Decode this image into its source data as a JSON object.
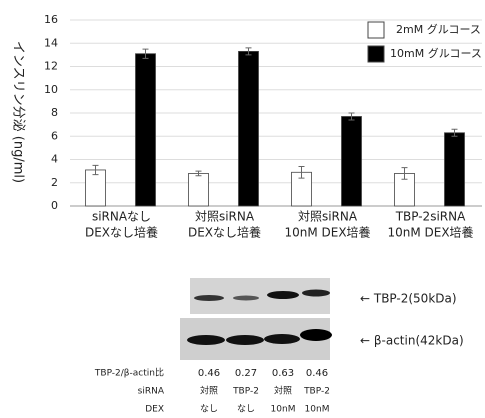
{
  "chart_data": {
    "type": "bar",
    "y_label": "インスリン分泌 (ng/ml)",
    "categories": [
      [
        "siRNAなし",
        "DEXなし培養"
      ],
      [
        "対照siRNA",
        "DEXなし培養"
      ],
      [
        "対照siRNA",
        "10nM DEX培養"
      ],
      [
        "TBP-2siRNA",
        "10nM DEX培養"
      ]
    ],
    "series": [
      {
        "name": "2mM グルコース",
        "color": "#ffffff",
        "values": [
          3.1,
          2.8,
          2.9,
          2.8
        ],
        "errors": [
          0.4,
          0.2,
          0.5,
          0.5
        ]
      },
      {
        "name": "10mM グルコース",
        "color": "#000000",
        "values": [
          13.1,
          13.3,
          7.7,
          6.3
        ],
        "errors": [
          0.4,
          0.3,
          0.3,
          0.3
        ]
      }
    ],
    "ylim": [
      0,
      16
    ],
    "yticks": [
      0,
      2,
      4,
      6,
      8,
      10,
      12,
      14,
      16
    ],
    "grid": true,
    "legend": "top-right"
  },
  "blot": {
    "band_labels": [
      "← TBP-2(50kDa)",
      "← β-actin(42kDa)"
    ],
    "table": {
      "rows": [
        {
          "label": "TBP-2/β-actin比",
          "cells": [
            "0.46",
            "0.27",
            "0.63",
            "0.46"
          ]
        },
        {
          "label": "siRNA",
          "cells": [
            "対照",
            "TBP-2",
            "対照",
            "TBP-2"
          ]
        },
        {
          "label": "DEX",
          "cells": [
            "なし",
            "なし",
            "10nM",
            "10nM"
          ]
        }
      ]
    }
  }
}
